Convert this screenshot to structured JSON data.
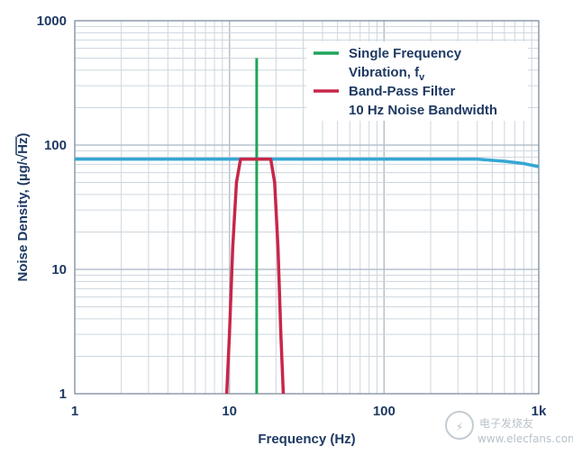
{
  "chart_data": {
    "type": "line",
    "xscale": "log",
    "yscale": "log",
    "xlim": [
      1,
      1000
    ],
    "ylim": [
      1,
      1000
    ],
    "xlabel": "Frequency (Hz)",
    "ylabel_prefix": "Noise Density, (µg/",
    "ylabel_radical": "Hz",
    "ylabel_suffix": ")",
    "xticks": [
      {
        "value": 1,
        "label": "1"
      },
      {
        "value": 10,
        "label": "10"
      },
      {
        "value": 100,
        "label": "100"
      },
      {
        "value": 1000,
        "label": "1k"
      }
    ],
    "yticks": [
      {
        "value": 1,
        "label": "1"
      },
      {
        "value": 10,
        "label": "10"
      },
      {
        "value": 100,
        "label": "100"
      },
      {
        "value": 1000,
        "label": "1000"
      }
    ],
    "grid": true,
    "legend_position": "top-right",
    "legend": [
      {
        "lines": [
          "Single Frequency",
          "Vibration, f"
        ],
        "subscript": "v",
        "color": "#1fa55a"
      },
      {
        "lines": [
          "Band-Pass Filter",
          "10 Hz Noise Bandwidth"
        ],
        "color": "#c8264a"
      }
    ],
    "series": [
      {
        "key": "noise_density",
        "color": "#35a7d4",
        "x": [
          1,
          10,
          100,
          400,
          600,
          800,
          1000
        ],
        "y": [
          77,
          77,
          77,
          77,
          74,
          71,
          67
        ]
      },
      {
        "key": "single_frequency",
        "color": "#1fa55a",
        "x": [
          15,
          15
        ],
        "y": [
          1,
          500
        ]
      },
      {
        "key": "band_pass",
        "color": "#c8264a",
        "x": [
          9.6,
          10.0,
          10.5,
          11.1,
          11.8,
          13.0,
          18.5,
          19.6,
          20.6,
          21.5,
          22.3
        ],
        "y": [
          1,
          3,
          15,
          50,
          77,
          77,
          77,
          50,
          15,
          3,
          1
        ]
      }
    ]
  },
  "watermark": {
    "line1": "电子发烧友",
    "line2": "www.elecfans.com"
  }
}
